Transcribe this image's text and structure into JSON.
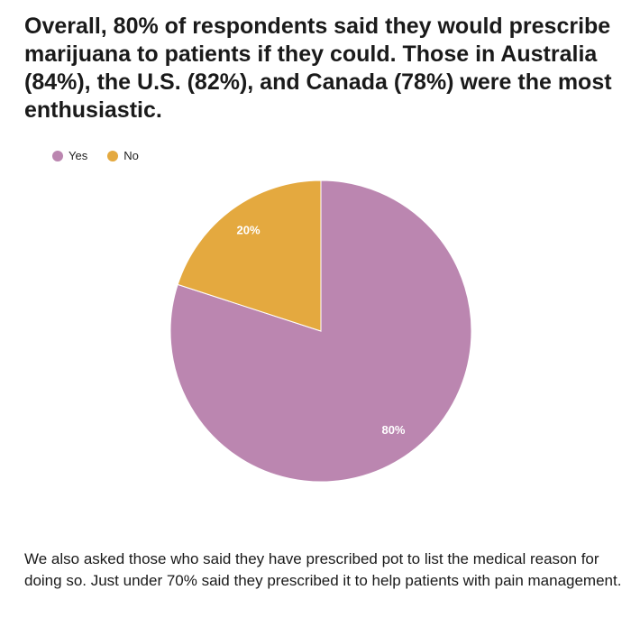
{
  "headline": "Overall, 80% of respondents said they would prescribe marijuana to patients if they could. Those in Australia (84%), the U.S. (82%), and Canada (78%) were the most enthusiastic.",
  "footer_text": "We also asked those who said they have prescribed pot to list the medical reason for doing so. Just under 70% said they prescribed it to help patients with pain management.",
  "chart_data": {
    "type": "pie",
    "title": "",
    "legend_position": "top-left",
    "slices": [
      {
        "label": "Yes",
        "value": 80,
        "display": "80%",
        "color": "#bb86b0"
      },
      {
        "label": "No",
        "value": 20,
        "display": "20%",
        "color": "#e4a93f"
      }
    ]
  }
}
